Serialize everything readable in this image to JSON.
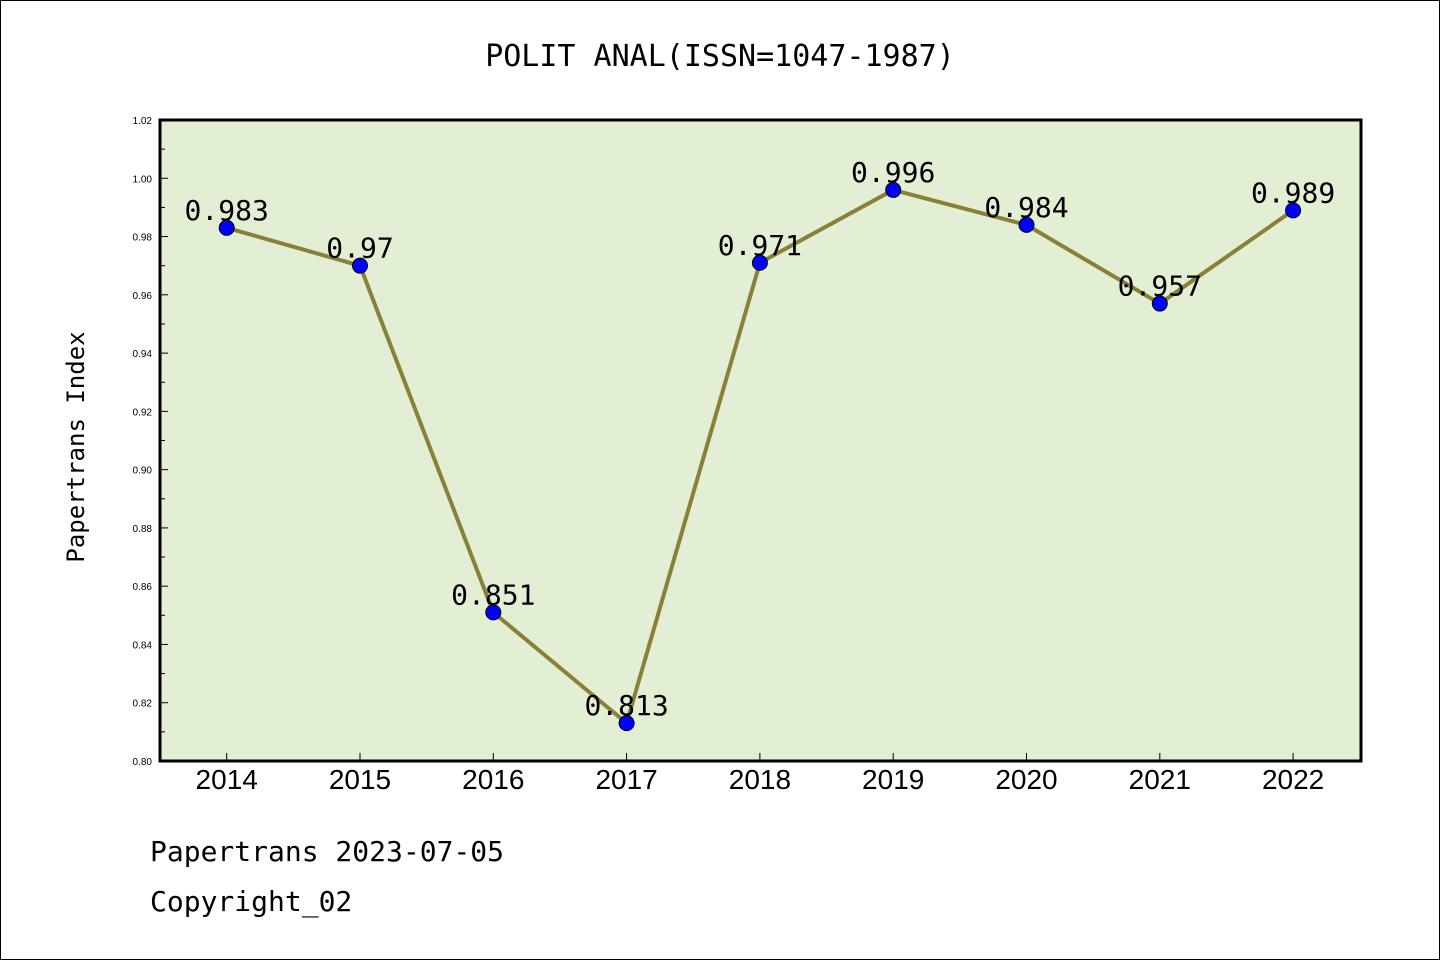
{
  "chart_data": {
    "type": "line",
    "title": "POLIT ANAL(ISSN=1047-1987)",
    "xlabel": "",
    "ylabel": "Papertrans Index",
    "categories": [
      "2014",
      "2015",
      "2016",
      "2017",
      "2018",
      "2019",
      "2020",
      "2021",
      "2022"
    ],
    "values": [
      0.983,
      0.97,
      0.851,
      0.813,
      0.971,
      0.996,
      0.984,
      0.957,
      0.989
    ],
    "data_labels": [
      "0.983",
      "0.97",
      "0.851",
      "0.813",
      "0.971",
      "0.996",
      "0.984",
      "0.957",
      "0.989"
    ],
    "ylim": [
      0.8,
      1.02
    ],
    "yticks": [
      "0.80",
      "0.82",
      "0.84",
      "0.86",
      "0.88",
      "0.90",
      "0.92",
      "0.94",
      "0.96",
      "0.98",
      "1.00",
      "1.02"
    ],
    "grid": false,
    "plot_background": "#e2efd5",
    "line_color": "#8b8038",
    "marker_color": "#0000ff"
  },
  "footer": {
    "line1": "Papertrans 2023-07-05",
    "line2": "Copyright_02"
  }
}
